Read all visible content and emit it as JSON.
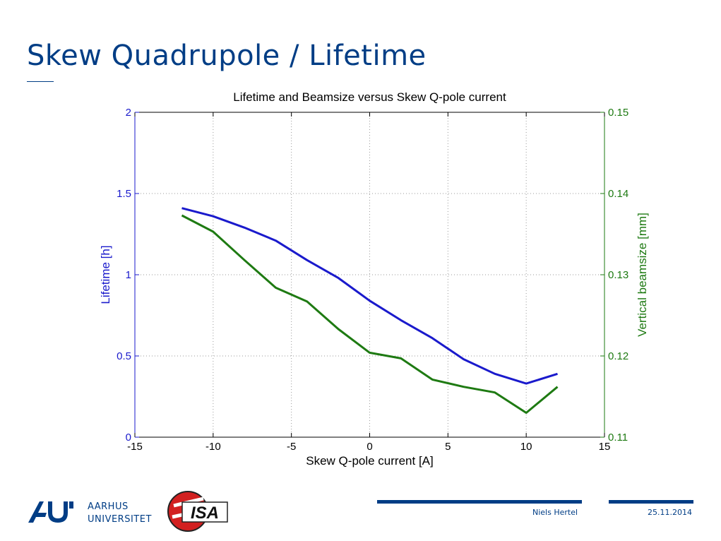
{
  "slide": {
    "title": "Skew Quadrupole / Lifetime",
    "university_line1": "AARHUS",
    "university_line2": "UNIVERSITET",
    "isa_logo_text": "ISA",
    "author": "Niels Hertel",
    "date": "25.11.2014"
  },
  "colors": {
    "brand": "#003d85",
    "lifetime": "#1a1acc",
    "beamsize": "#1e7a12",
    "grid": "#9a9a9a"
  },
  "chart_data": {
    "type": "line",
    "title": "Lifetime and Beamsize versus Skew Q-pole current",
    "xlabel": "Skew Q-pole current [A]",
    "ylabel_left": "Lifetime [h]",
    "ylabel_right": "Vertical beamsize [mm]",
    "xlim": [
      -15,
      15
    ],
    "ylim_left": [
      0,
      2
    ],
    "ylim_right": [
      0.11,
      0.15
    ],
    "xticks": [
      -15,
      -10,
      -5,
      0,
      5,
      10,
      15
    ],
    "xtick_labels": [
      "-15",
      "-10",
      "-5",
      "0",
      "5",
      "10",
      "15"
    ],
    "yticks_left": [
      0,
      0.5,
      1,
      1.5,
      2
    ],
    "ytick_labels_left": [
      "0",
      "0.5",
      "1",
      "1.5",
      "2"
    ],
    "yticks_right": [
      0.11,
      0.12,
      0.13,
      0.14,
      0.15
    ],
    "ytick_labels_right": [
      "0.11",
      "0.12",
      "0.13",
      "0.14",
      "0.15"
    ],
    "grid": true,
    "series": [
      {
        "name": "Lifetime",
        "axis": "left",
        "x": [
          -12,
          -10,
          -8,
          -6,
          -4,
          -2,
          0,
          2,
          4,
          6,
          8,
          10,
          12
        ],
        "y": [
          1.41,
          1.36,
          1.29,
          1.21,
          1.09,
          0.98,
          0.84,
          0.72,
          0.61,
          0.48,
          0.39,
          0.33,
          0.39
        ]
      },
      {
        "name": "Vertical beamsize",
        "axis": "right",
        "x": [
          -12,
          -10,
          -8,
          -6,
          -4,
          -2,
          0,
          2,
          4,
          6,
          8,
          10,
          12
        ],
        "y": [
          0.1373,
          0.1353,
          0.1318,
          0.1284,
          0.1267,
          0.1233,
          0.1204,
          0.1197,
          0.1171,
          0.1162,
          0.1155,
          0.113,
          0.1162
        ]
      }
    ]
  }
}
